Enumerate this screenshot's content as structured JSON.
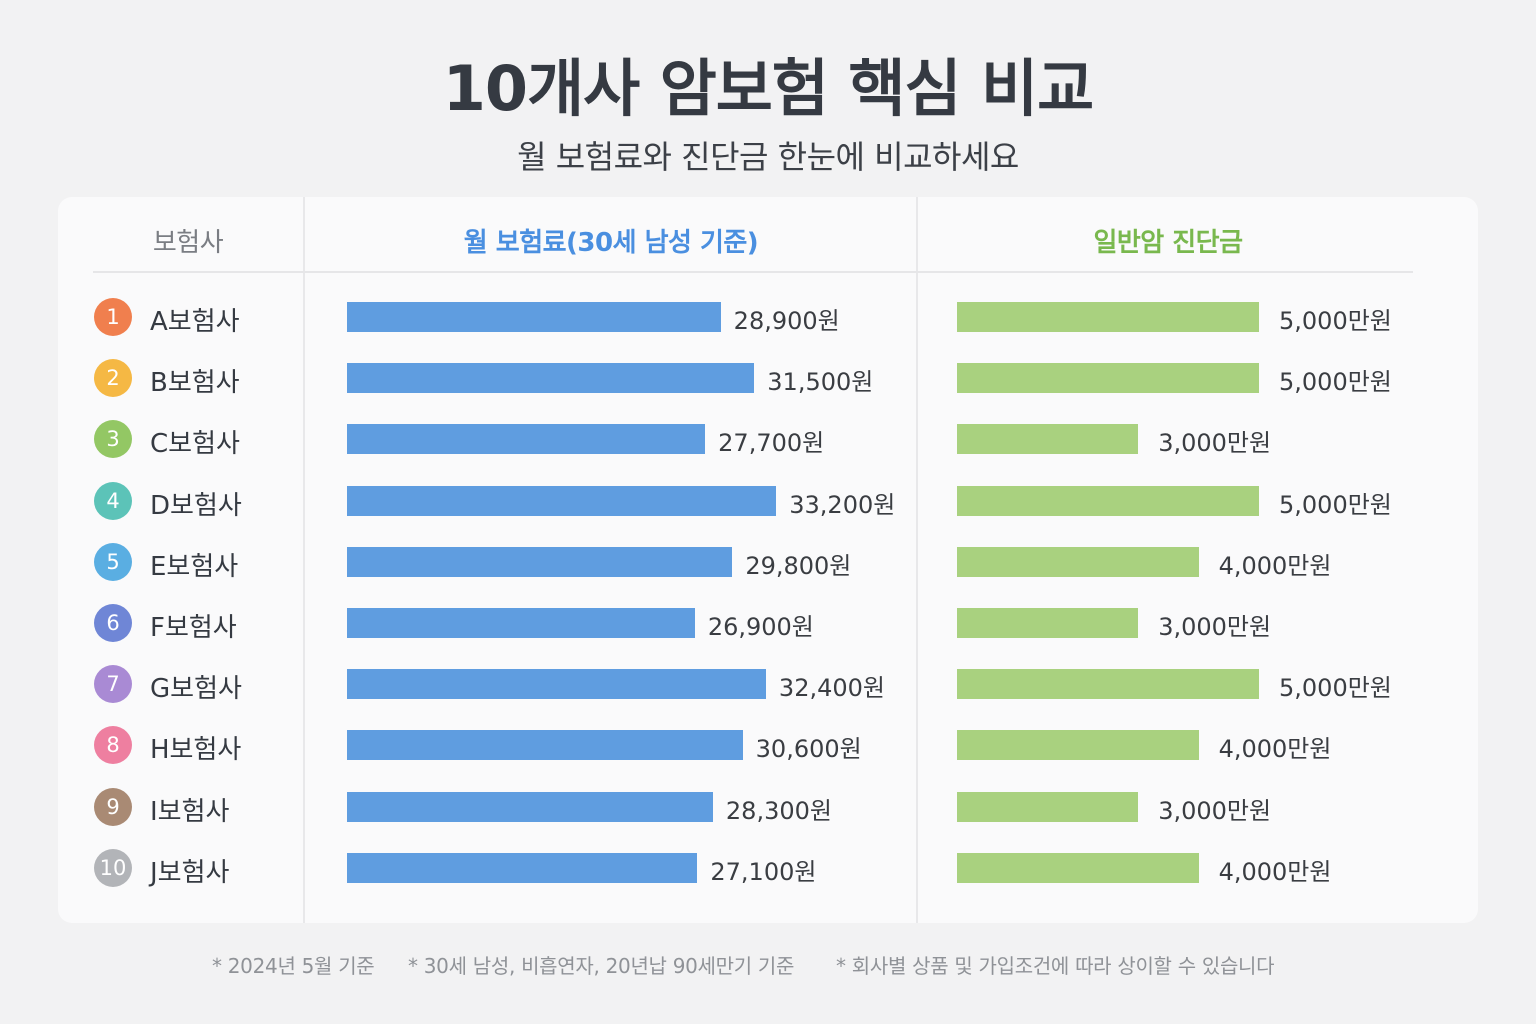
{
  "title": "10개사 암보험 핵심 비교",
  "subtitle": "월 보험료와 진단금 한눈에 비교하세요",
  "columns": {
    "company": "보험사",
    "premium": "월 보험료(30세 남성 기준)",
    "diagnosis": "일반암 진단금"
  },
  "chart_data": {
    "type": "bar",
    "categories": [
      "A보험사",
      "B보험사",
      "C보험사",
      "D보험사",
      "E보험사",
      "F보험사",
      "G보험사",
      "H보험사",
      "I보험사",
      "J보험사"
    ],
    "ranks": [
      "1",
      "2",
      "3",
      "4",
      "5",
      "6",
      "7",
      "8",
      "9",
      "10"
    ],
    "series": [
      {
        "name": "월 보험료(30세 남성 기준)",
        "unit": "원",
        "values": [
          28900,
          31500,
          27700,
          33200,
          29800,
          26900,
          32400,
          30600,
          28300,
          27100
        ],
        "labels": [
          "28,900원",
          "31,500원",
          "27,700원",
          "33,200원",
          "29,800원",
          "26,900원",
          "32,400원",
          "30,600원",
          "28,300원",
          "27,100원"
        ],
        "color": "#5f9de0"
      },
      {
        "name": "일반암 진단금",
        "unit": "만원",
        "values": [
          5000,
          5000,
          3000,
          5000,
          4000,
          3000,
          5000,
          4000,
          3000,
          4000
        ],
        "labels": [
          "5,000만원",
          "5,000만원",
          "3,000만원",
          "5,000만원",
          "4,000만원",
          "3,000만원",
          "5,000만원",
          "4,000만원",
          "3,000만원",
          "4,000만원"
        ],
        "color": "#a9d17f"
      }
    ],
    "badge_colors": [
      "#f07f4e",
      "#f5b844",
      "#93c764",
      "#5cc3b8",
      "#5aaee2",
      "#6f86d6",
      "#a98ad4",
      "#ee7fa0",
      "#a98a74",
      "#b2b4b8"
    ]
  },
  "footnotes": [
    "* 2024년 5월 기준",
    "* 30세 남성, 비흡연자, 20년납 90세만기 기준",
    "* 회사별 상품 및 가입조건에 따라 상이할 수 있습니다"
  ]
}
